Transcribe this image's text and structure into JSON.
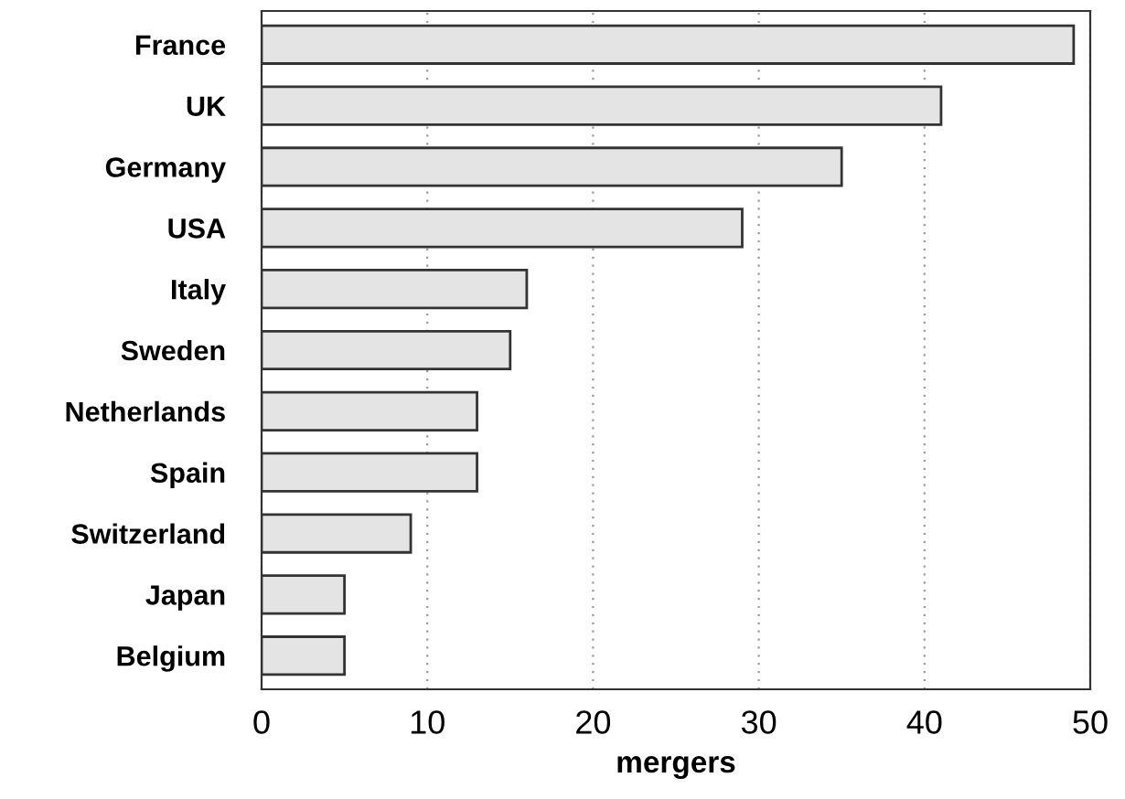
{
  "chart_data": {
    "type": "bar",
    "orientation": "horizontal",
    "xlabel": "mergers",
    "categories": [
      "France",
      "UK",
      "Germany",
      "USA",
      "Italy",
      "Sweden",
      "Netherlands",
      "Spain",
      "Switzerland",
      "Japan",
      "Belgium"
    ],
    "values": [
      49,
      41,
      35,
      29,
      16,
      15,
      13,
      13,
      9,
      5,
      5
    ],
    "color": "#e4e4e4",
    "xlim": [
      0,
      50
    ],
    "xticks": [
      0,
      10,
      20,
      30,
      40,
      50
    ],
    "grid": "x"
  }
}
